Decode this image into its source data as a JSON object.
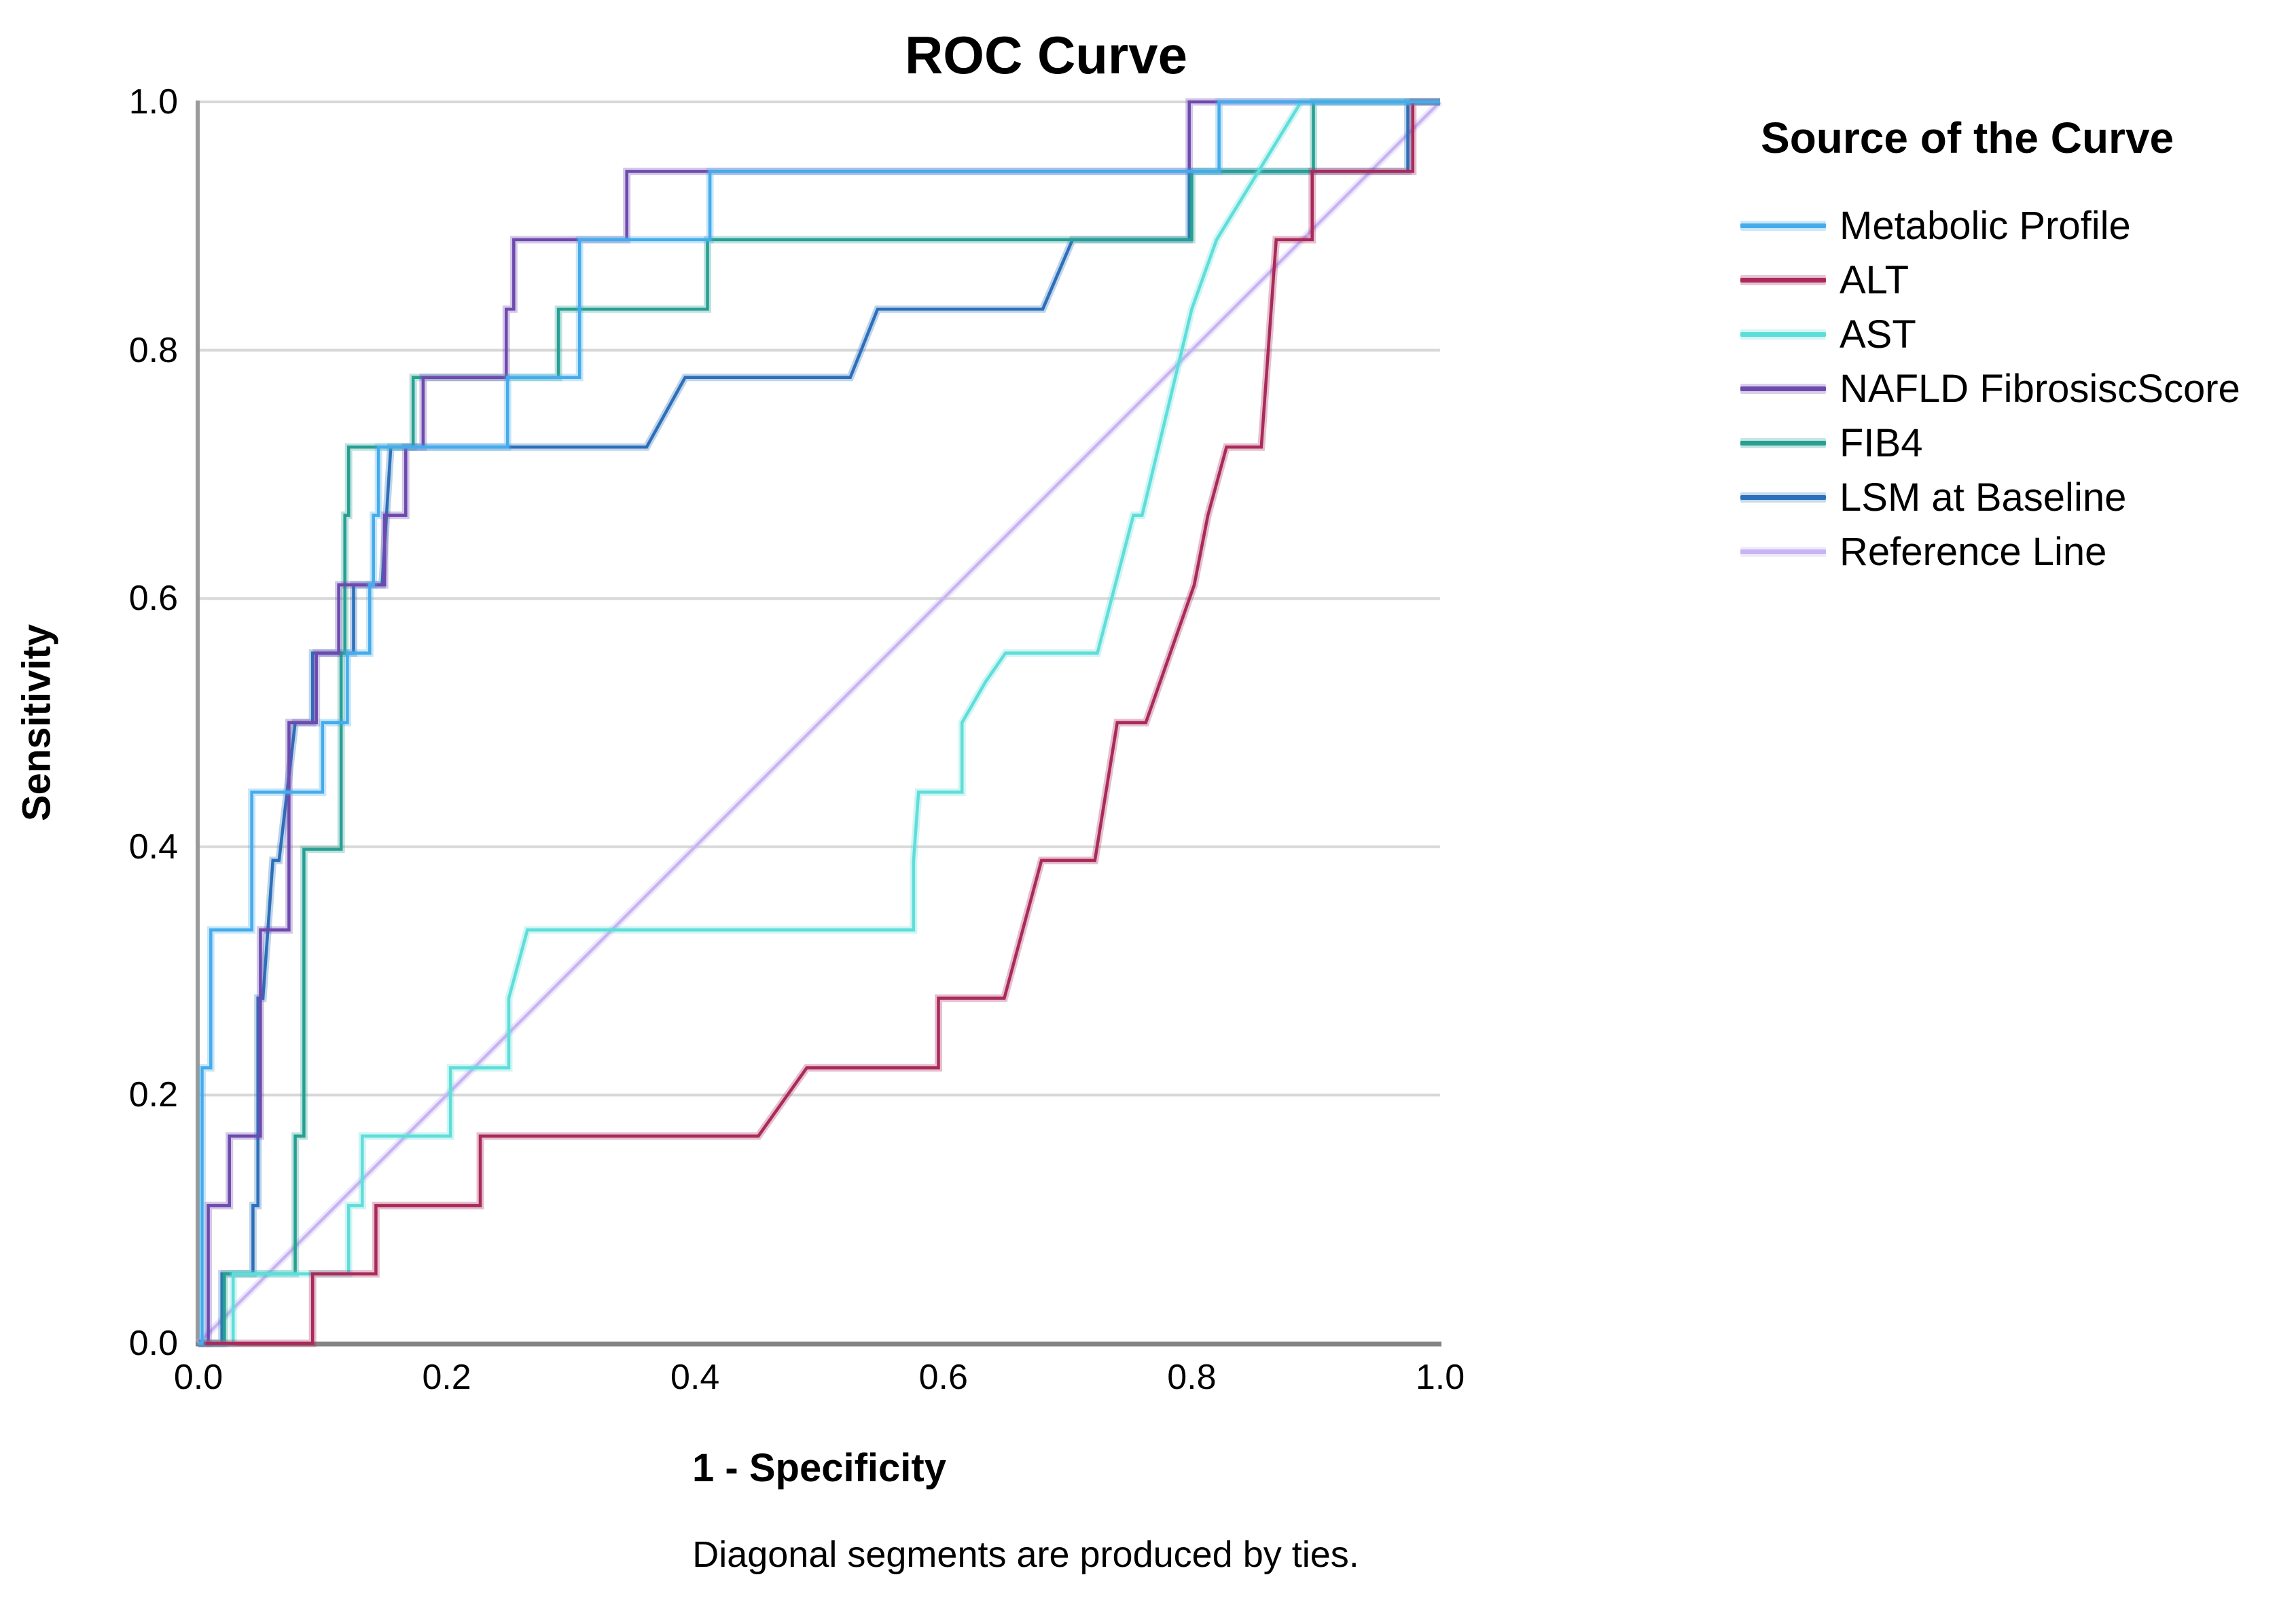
{
  "title": "ROC Curve",
  "caption": "Diagonal segments are produced by ties.",
  "legend": {
    "title": "Source of the Curve"
  },
  "colors": {
    "grid": "#D8D8D8",
    "axis_spine": "#848484",
    "text": "#000000",
    "background": "#FFFFFF"
  },
  "chart_data": {
    "type": "line",
    "title": "ROC Curve",
    "xlabel": "1 - Specificity",
    "ylabel": "Sensitivity",
    "xlim": [
      0.0,
      1.0
    ],
    "ylim": [
      0.0,
      1.0
    ],
    "x_ticks": [
      "0.0",
      "0.2",
      "0.4",
      "0.6",
      "0.8",
      "1.0"
    ],
    "y_ticks": [
      "0.0",
      "0.2",
      "0.4",
      "0.6",
      "0.8",
      "1.0"
    ],
    "grid": "horizontal gridlines at 0.2, 0.4, 0.6, 0.8, 1.0",
    "legend_position": "right",
    "note": "SPSS-style ROC step curves; sensitivity steps of 1/18",
    "series": [
      {
        "name": "Metabolic Profile",
        "color": "#45ACEC",
        "points": [
          [
            0,
            0
          ],
          [
            0.003,
            0
          ],
          [
            0.003,
            0.222
          ],
          [
            0.01,
            0.222
          ],
          [
            0.01,
            0.333
          ],
          [
            0.043,
            0.333
          ],
          [
            0.043,
            0.444
          ],
          [
            0.1,
            0.444
          ],
          [
            0.1,
            0.5
          ],
          [
            0.12,
            0.5
          ],
          [
            0.12,
            0.556
          ],
          [
            0.138,
            0.556
          ],
          [
            0.138,
            0.611
          ],
          [
            0.141,
            0.611
          ],
          [
            0.141,
            0.667
          ],
          [
            0.145,
            0.667
          ],
          [
            0.145,
            0.722
          ],
          [
            0.249,
            0.722
          ],
          [
            0.249,
            0.778
          ],
          [
            0.307,
            0.778
          ],
          [
            0.307,
            0.889
          ],
          [
            0.412,
            0.889
          ],
          [
            0.412,
            0.944
          ],
          [
            0.822,
            0.944
          ],
          [
            0.822,
            1.0
          ],
          [
            1,
            1
          ]
        ]
      },
      {
        "name": "ALT",
        "color": "#A92A5B",
        "points": [
          [
            0,
            0
          ],
          [
            0.092,
            0
          ],
          [
            0.092,
            0.056
          ],
          [
            0.143,
            0.056
          ],
          [
            0.143,
            0.111
          ],
          [
            0.227,
            0.111
          ],
          [
            0.227,
            0.167
          ],
          [
            0.451,
            0.167
          ],
          [
            0.49,
            0.222
          ],
          [
            0.596,
            0.222
          ],
          [
            0.596,
            0.278
          ],
          [
            0.649,
            0.278
          ],
          [
            0.679,
            0.389
          ],
          [
            0.722,
            0.389
          ],
          [
            0.74,
            0.5
          ],
          [
            0.763,
            0.5
          ],
          [
            0.802,
            0.611
          ],
          [
            0.813,
            0.667
          ],
          [
            0.828,
            0.722
          ],
          [
            0.856,
            0.722
          ],
          [
            0.868,
            0.889
          ],
          [
            0.897,
            0.889
          ],
          [
            0.897,
            0.944
          ],
          [
            0.978,
            0.944
          ],
          [
            0.978,
            1.0
          ],
          [
            1,
            1
          ]
        ]
      },
      {
        "name": "AST",
        "color": "#5FDED9",
        "points": [
          [
            0,
            0
          ],
          [
            0.028,
            0
          ],
          [
            0.028,
            0.056
          ],
          [
            0.121,
            0.056
          ],
          [
            0.121,
            0.111
          ],
          [
            0.132,
            0.111
          ],
          [
            0.132,
            0.167
          ],
          [
            0.203,
            0.167
          ],
          [
            0.203,
            0.222
          ],
          [
            0.25,
            0.222
          ],
          [
            0.25,
            0.278
          ],
          [
            0.265,
            0.333
          ],
          [
            0.576,
            0.333
          ],
          [
            0.576,
            0.389
          ],
          [
            0.58,
            0.444
          ],
          [
            0.615,
            0.444
          ],
          [
            0.615,
            0.5
          ],
          [
            0.634,
            0.533
          ],
          [
            0.65,
            0.556
          ],
          [
            0.724,
            0.556
          ],
          [
            0.753,
            0.667
          ],
          [
            0.76,
            0.667
          ],
          [
            0.8,
            0.833
          ],
          [
            0.82,
            0.889
          ],
          [
            0.888,
            1.0
          ],
          [
            1,
            1
          ]
        ]
      },
      {
        "name": "NAFLD FibrosiscScore",
        "color": "#6E4AAE",
        "points": [
          [
            0,
            0
          ],
          [
            0.008,
            0
          ],
          [
            0.008,
            0.111
          ],
          [
            0.025,
            0.111
          ],
          [
            0.025,
            0.167
          ],
          [
            0.05,
            0.167
          ],
          [
            0.05,
            0.333
          ],
          [
            0.073,
            0.333
          ],
          [
            0.073,
            0.5
          ],
          [
            0.095,
            0.5
          ],
          [
            0.095,
            0.556
          ],
          [
            0.113,
            0.556
          ],
          [
            0.113,
            0.611
          ],
          [
            0.15,
            0.611
          ],
          [
            0.15,
            0.667
          ],
          [
            0.167,
            0.667
          ],
          [
            0.167,
            0.722
          ],
          [
            0.181,
            0.722
          ],
          [
            0.181,
            0.778
          ],
          [
            0.248,
            0.778
          ],
          [
            0.248,
            0.833
          ],
          [
            0.254,
            0.833
          ],
          [
            0.254,
            0.889
          ],
          [
            0.345,
            0.889
          ],
          [
            0.345,
            0.944
          ],
          [
            0.798,
            0.944
          ],
          [
            0.798,
            1.0
          ],
          [
            1,
            1
          ]
        ]
      },
      {
        "name": "FIB4",
        "color": "#27A093",
        "points": [
          [
            0,
            0
          ],
          [
            0.021,
            0
          ],
          [
            0.021,
            0.056
          ],
          [
            0.078,
            0.056
          ],
          [
            0.078,
            0.167
          ],
          [
            0.085,
            0.167
          ],
          [
            0.085,
            0.398
          ],
          [
            0.115,
            0.398
          ],
          [
            0.115,
            0.556
          ],
          [
            0.118,
            0.556
          ],
          [
            0.118,
            0.667
          ],
          [
            0.121,
            0.667
          ],
          [
            0.121,
            0.722
          ],
          [
            0.173,
            0.722
          ],
          [
            0.173,
            0.778
          ],
          [
            0.29,
            0.778
          ],
          [
            0.29,
            0.833
          ],
          [
            0.41,
            0.833
          ],
          [
            0.41,
            0.889
          ],
          [
            0.8,
            0.889
          ],
          [
            0.8,
            0.944
          ],
          [
            0.898,
            0.944
          ],
          [
            0.898,
            1.0
          ],
          [
            1,
            1
          ]
        ]
      },
      {
        "name": "LSM at Baseline",
        "color": "#2C6FBA",
        "points": [
          [
            0,
            0
          ],
          [
            0.019,
            0
          ],
          [
            0.019,
            0.056
          ],
          [
            0.044,
            0.056
          ],
          [
            0.044,
            0.111
          ],
          [
            0.048,
            0.111
          ],
          [
            0.048,
            0.278
          ],
          [
            0.052,
            0.278
          ],
          [
            0.06,
            0.389
          ],
          [
            0.065,
            0.389
          ],
          [
            0.078,
            0.5
          ],
          [
            0.092,
            0.5
          ],
          [
            0.092,
            0.556
          ],
          [
            0.125,
            0.556
          ],
          [
            0.125,
            0.611
          ],
          [
            0.148,
            0.611
          ],
          [
            0.155,
            0.722
          ],
          [
            0.361,
            0.722
          ],
          [
            0.392,
            0.778
          ],
          [
            0.525,
            0.778
          ],
          [
            0.547,
            0.833
          ],
          [
            0.68,
            0.833
          ],
          [
            0.704,
            0.889
          ],
          [
            0.798,
            0.889
          ],
          [
            0.798,
            0.944
          ],
          [
            0.974,
            0.944
          ],
          [
            0.974,
            1.0
          ],
          [
            1,
            1
          ]
        ]
      },
      {
        "name": "Reference Line",
        "color": "#C8B4F4",
        "points": [
          [
            0,
            0
          ],
          [
            1,
            1
          ]
        ]
      }
    ]
  }
}
